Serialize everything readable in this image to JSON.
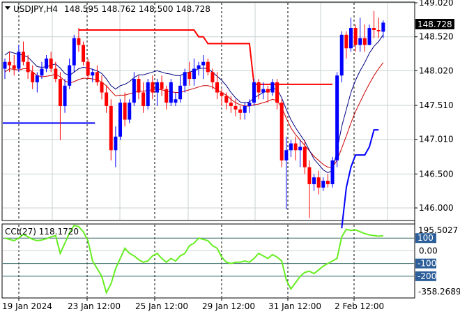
{
  "header": {
    "symbol_label": "USDJPY,H4",
    "ohlc_text": "148.595 148.762 148.500 148.728",
    "current_price": "148.728"
  },
  "indicator": {
    "label": "CCI(27) 118.1720",
    "scale_max_text": "195.5027",
    "scale_min_text": "-358.2689"
  },
  "colors": {
    "bull": "#0000ff",
    "bear": "#ff0000",
    "wick": "#000000",
    "ma_fast": "#000080",
    "ma_slow": "#cc0000",
    "stop": "#ff0000",
    "sup": "#0000ff",
    "cci": "#66ee22",
    "level": "#336666",
    "tag_blue": "#2d5f9a",
    "price_tag": "#000000"
  },
  "chart_data": {
    "type": "candlestick",
    "price_axis": {
      "ticks": [
        "149.020",
        "148.520",
        "148.020",
        "147.510",
        "147.010",
        "146.500",
        "146.000"
      ],
      "range": [
        145.9,
        149.1
      ]
    },
    "time_axis": {
      "labels": [
        "19 Jan 2024",
        "23 Jan 12:00",
        "25 Jan 12:00",
        "29 Jan 12:00",
        "31 Jan 12:00",
        "2 Feb 12:00"
      ]
    },
    "candles": [
      [
        148.05,
        148.2,
        147.9,
        148.15
      ],
      [
        148.15,
        148.3,
        148.0,
        148.1
      ],
      [
        148.1,
        148.25,
        147.95,
        148.05
      ],
      [
        148.05,
        148.4,
        148.0,
        148.3
      ],
      [
        148.3,
        148.45,
        148.1,
        148.15
      ],
      [
        148.15,
        148.25,
        147.9,
        148.0
      ],
      [
        148.0,
        148.1,
        147.75,
        147.85
      ],
      [
        147.85,
        148.0,
        147.7,
        147.95
      ],
      [
        147.95,
        148.15,
        147.9,
        148.05
      ],
      [
        148.05,
        148.25,
        148.0,
        148.2
      ],
      [
        148.2,
        148.3,
        148.0,
        148.05
      ],
      [
        148.05,
        148.15,
        147.85,
        147.9
      ],
      [
        147.9,
        148.0,
        147.0,
        147.5
      ],
      [
        147.5,
        147.9,
        147.4,
        147.8
      ],
      [
        147.8,
        148.2,
        147.75,
        148.1
      ],
      [
        148.1,
        148.55,
        148.0,
        148.5
      ],
      [
        148.5,
        148.65,
        148.3,
        148.4
      ],
      [
        148.4,
        148.45,
        148.1,
        148.15
      ],
      [
        148.15,
        148.2,
        147.9,
        147.95
      ],
      [
        147.95,
        148.05,
        147.85,
        148.0
      ],
      [
        148.0,
        148.1,
        147.8,
        147.85
      ],
      [
        147.85,
        147.95,
        147.6,
        147.7
      ],
      [
        147.7,
        147.8,
        147.4,
        147.5
      ],
      [
        147.5,
        147.6,
        146.7,
        146.85
      ],
      [
        146.85,
        147.2,
        146.6,
        147.05
      ],
      [
        147.05,
        147.6,
        147.0,
        147.55
      ],
      [
        147.55,
        147.7,
        147.2,
        147.3
      ],
      [
        147.3,
        147.6,
        147.25,
        147.55
      ],
      [
        147.55,
        148.0,
        147.5,
        147.9
      ],
      [
        147.9,
        147.95,
        147.6,
        147.7
      ],
      [
        147.7,
        147.85,
        147.4,
        147.5
      ],
      [
        147.5,
        147.9,
        147.45,
        147.85
      ],
      [
        147.85,
        147.95,
        147.6,
        147.7
      ],
      [
        147.7,
        147.9,
        147.5,
        147.85
      ],
      [
        147.85,
        147.95,
        147.65,
        147.75
      ],
      [
        147.75,
        147.8,
        147.45,
        147.55
      ],
      [
        147.55,
        147.9,
        147.5,
        147.85
      ],
      [
        147.55,
        147.7,
        147.5,
        147.6
      ],
      [
        147.6,
        147.95,
        147.55,
        147.8
      ],
      [
        147.8,
        148.05,
        147.7,
        148.0
      ],
      [
        148.0,
        148.15,
        147.8,
        147.9
      ],
      [
        147.9,
        148.2,
        147.8,
        148.05
      ],
      [
        148.05,
        148.15,
        147.95,
        148.1
      ],
      [
        148.1,
        148.25,
        147.9,
        148.15
      ],
      [
        148.15,
        148.2,
        147.95,
        148.0
      ],
      [
        148.0,
        148.05,
        147.75,
        147.85
      ],
      [
        147.85,
        148.0,
        147.6,
        147.7
      ],
      [
        147.7,
        147.75,
        147.5,
        147.65
      ],
      [
        147.65,
        147.7,
        147.45,
        147.55
      ],
      [
        147.55,
        147.65,
        147.4,
        147.5
      ],
      [
        147.5,
        147.6,
        147.35,
        147.45
      ],
      [
        147.45,
        147.5,
        147.3,
        147.4
      ],
      [
        147.4,
        147.55,
        147.3,
        147.5
      ],
      [
        147.5,
        147.6,
        147.4,
        147.55
      ],
      [
        147.55,
        147.9,
        147.5,
        147.85
      ],
      [
        147.85,
        147.9,
        147.6,
        147.7
      ],
      [
        147.7,
        147.85,
        147.6,
        147.75
      ],
      [
        147.75,
        147.8,
        147.55,
        147.7
      ],
      [
        147.7,
        147.9,
        147.65,
        147.85
      ],
      [
        147.85,
        147.9,
        147.45,
        147.55
      ],
      [
        147.55,
        147.6,
        146.6,
        146.7
      ],
      [
        146.7,
        147.05,
        145.98,
        146.85
      ],
      [
        146.85,
        147.0,
        146.75,
        146.95
      ],
      [
        146.95,
        147.05,
        146.7,
        146.85
      ],
      [
        146.85,
        147.0,
        146.6,
        146.9
      ],
      [
        146.9,
        147.0,
        146.5,
        146.6
      ],
      [
        146.6,
        146.7,
        145.85,
        146.35
      ],
      [
        146.35,
        146.5,
        146.25,
        146.45
      ],
      [
        146.45,
        146.55,
        146.2,
        146.3
      ],
      [
        146.3,
        146.45,
        146.25,
        146.4
      ],
      [
        146.4,
        146.5,
        146.3,
        146.35
      ],
      [
        146.35,
        146.75,
        146.3,
        146.7
      ],
      [
        146.7,
        148.0,
        146.6,
        147.95
      ],
      [
        147.95,
        148.6,
        147.85,
        148.55
      ],
      [
        148.55,
        148.6,
        148.2,
        148.35
      ],
      [
        148.35,
        148.8,
        148.3,
        148.65
      ],
      [
        148.65,
        148.7,
        148.3,
        148.4
      ],
      [
        148.4,
        148.8,
        148.3,
        148.5
      ],
      [
        148.5,
        148.7,
        148.3,
        148.4
      ],
      [
        148.4,
        148.7,
        148.4,
        148.65
      ],
      [
        148.65,
        148.9,
        148.5,
        148.62
      ],
      [
        148.62,
        148.8,
        148.5,
        148.6
      ],
      [
        148.595,
        148.762,
        148.5,
        148.728
      ]
    ],
    "ma_fast": [
      148.25,
      148.3,
      148.28,
      148.26,
      148.25,
      148.22,
      148.15,
      148.08,
      148.07,
      148.08,
      148.1,
      148.12,
      148.06,
      147.98,
      147.95,
      148.0,
      148.05,
      148.07,
      148.06,
      148.04,
      148.02,
      147.98,
      147.9,
      147.8,
      147.75,
      147.8,
      147.82,
      147.86,
      147.92,
      147.96,
      147.96,
      147.98,
      148.0,
      148.02,
      148.0,
      147.98,
      147.97,
      147.95,
      147.95,
      147.98,
      148.0,
      148.02,
      148.05,
      148.06,
      148.05,
      148.0,
      147.94,
      147.88,
      147.8,
      147.7,
      147.62,
      147.56,
      147.55,
      147.56,
      147.62,
      147.66,
      147.7,
      147.72,
      147.76,
      147.75,
      147.62,
      147.45,
      147.3,
      147.18,
      147.08,
      146.98,
      146.85,
      146.72,
      146.64,
      146.56,
      146.52,
      146.55,
      146.85,
      147.2,
      147.45,
      147.7,
      147.88,
      148.02,
      148.14,
      148.28,
      148.38,
      148.45,
      148.55
    ],
    "ma_slow": [
      148.0,
      148.05,
      148.04,
      148.03,
      148.05,
      148.05,
      148.0,
      147.95,
      147.93,
      147.94,
      147.95,
      147.97,
      147.93,
      147.87,
      147.84,
      147.86,
      147.89,
      147.91,
      147.91,
      147.9,
      147.89,
      147.85,
      147.8,
      147.72,
      147.65,
      147.66,
      147.66,
      147.68,
      147.7,
      147.72,
      147.72,
      147.73,
      147.74,
      147.75,
      147.74,
      147.72,
      147.71,
      147.7,
      147.7,
      147.72,
      147.74,
      147.76,
      147.78,
      147.8,
      147.8,
      147.78,
      147.74,
      147.7,
      147.66,
      147.6,
      147.55,
      147.52,
      147.5,
      147.5,
      147.52,
      147.53,
      147.55,
      147.57,
      147.6,
      147.58,
      147.48,
      147.32,
      147.18,
      147.08,
      147.0,
      146.92,
      146.84,
      146.76,
      146.7,
      146.64,
      146.6,
      146.6,
      146.7,
      146.88,
      147.06,
      147.25,
      147.42,
      147.56,
      147.7,
      147.83,
      147.95,
      148.05,
      148.14
    ],
    "stop_level": [
      null,
      null,
      null,
      null,
      null,
      null,
      null,
      null,
      null,
      null,
      null,
      null,
      null,
      null,
      null,
      null,
      148.62,
      148.62,
      148.62,
      148.62,
      148.62,
      148.62,
      148.62,
      148.62,
      148.62,
      148.62,
      148.62,
      148.62,
      148.62,
      148.62,
      148.62,
      148.62,
      148.62,
      148.62,
      148.62,
      148.62,
      148.62,
      148.62,
      148.62,
      148.62,
      148.62,
      148.62,
      148.52,
      148.52,
      148.42,
      148.42,
      148.42,
      148.42,
      148.42,
      148.42,
      148.42,
      148.42,
      148.42,
      148.42,
      147.82,
      147.82,
      147.82,
      147.82,
      147.82,
      147.82,
      147.82,
      147.82,
      147.82,
      147.82,
      147.82,
      147.82,
      147.82,
      147.82,
      147.82,
      147.82,
      147.82,
      147.82,
      null,
      null,
      null,
      null,
      null,
      null,
      null,
      null,
      null,
      null,
      null
    ],
    "support_left": {
      "value": 147.25,
      "from": 0,
      "to": 15
    },
    "support_right": [
      null,
      null,
      null,
      null,
      null,
      null,
      null,
      null,
      null,
      null,
      null,
      null,
      null,
      null,
      null,
      null,
      null,
      null,
      null,
      null,
      null,
      null,
      null,
      null,
      null,
      null,
      null,
      null,
      null,
      null,
      null,
      null,
      null,
      null,
      null,
      null,
      null,
      null,
      null,
      null,
      null,
      null,
      null,
      null,
      null,
      null,
      null,
      null,
      null,
      null,
      null,
      null,
      null,
      null,
      null,
      null,
      null,
      null,
      null,
      null,
      null,
      null,
      null,
      null,
      null,
      null,
      null,
      null,
      null,
      null,
      null,
      null,
      null,
      145.7,
      146.3,
      146.6,
      146.78,
      146.78,
      146.78,
      146.9,
      147.15,
      147.15,
      null
    ],
    "cci_axis": {
      "levels": [
        100,
        0,
        -100,
        -200
      ],
      "labels": [
        "100",
        "0.00",
        "-100",
        "-200"
      ],
      "range": [
        -360,
        200
      ]
    },
    "cci": [
      100,
      90,
      80,
      100,
      130,
      110,
      90,
      80,
      85,
      95,
      110,
      120,
      -20,
      60,
      140,
      200,
      190,
      150,
      80,
      -80,
      -140,
      -200,
      -330,
      -260,
      -140,
      -60,
      20,
      -20,
      -40,
      -70,
      -90,
      -80,
      -40,
      -20,
      -60,
      -90,
      -60,
      -80,
      -40,
      -20,
      40,
      60,
      100,
      90,
      80,
      40,
      20,
      -50,
      -90,
      -100,
      -90,
      -90,
      -80,
      -90,
      -60,
      -20,
      -40,
      -60,
      -30,
      -50,
      -80,
      -230,
      -300,
      -250,
      -200,
      -170,
      -160,
      -180,
      -150,
      -120,
      -100,
      -80,
      -60,
      110,
      170,
      160,
      165,
      150,
      135,
      125,
      120,
      115,
      118
    ]
  }
}
